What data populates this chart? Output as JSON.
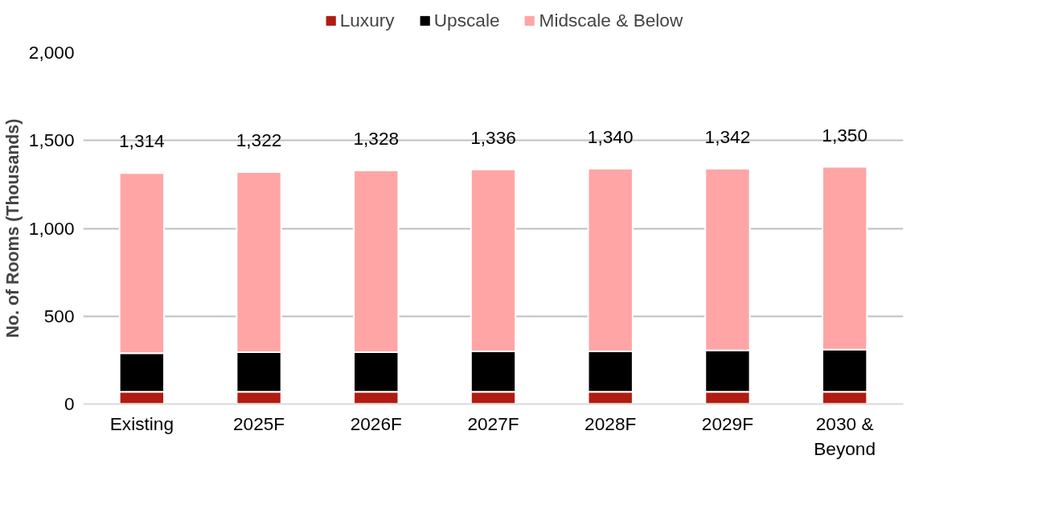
{
  "chart_data": {
    "type": "bar",
    "stacked": true,
    "ylabel": "No. of Rooms (Thousands)",
    "categories": [
      "Existing",
      "2025F",
      "2026F",
      "2027F",
      "2028F",
      "2029F",
      "2030 & Beyond"
    ],
    "series": [
      {
        "name": "Luxury",
        "color": "#b01c12",
        "values": [
          70,
          70,
          70,
          70,
          70,
          70,
          70
        ]
      },
      {
        "name": "Upscale",
        "color": "#000000",
        "values": [
          220,
          225,
          225,
          230,
          230,
          235,
          240
        ]
      },
      {
        "name": "Midscale & Below",
        "color": "#ffa5a5",
        "values": [
          1025,
          1025,
          1035,
          1035,
          1040,
          1035,
          1040
        ]
      }
    ],
    "totals": [
      "1,314",
      "1,322",
      "1,328",
      "1,336",
      "1,340",
      "1,342",
      "1,350"
    ],
    "ylim": [
      0,
      2000
    ],
    "yticks": [
      {
        "value": 0,
        "label": "0"
      },
      {
        "value": 500,
        "label": "500"
      },
      {
        "value": 1000,
        "label": "1,000"
      },
      {
        "value": 1500,
        "label": "1,500"
      },
      {
        "value": 2000,
        "label": "2,000"
      }
    ],
    "grid": "y",
    "legend": "top"
  }
}
